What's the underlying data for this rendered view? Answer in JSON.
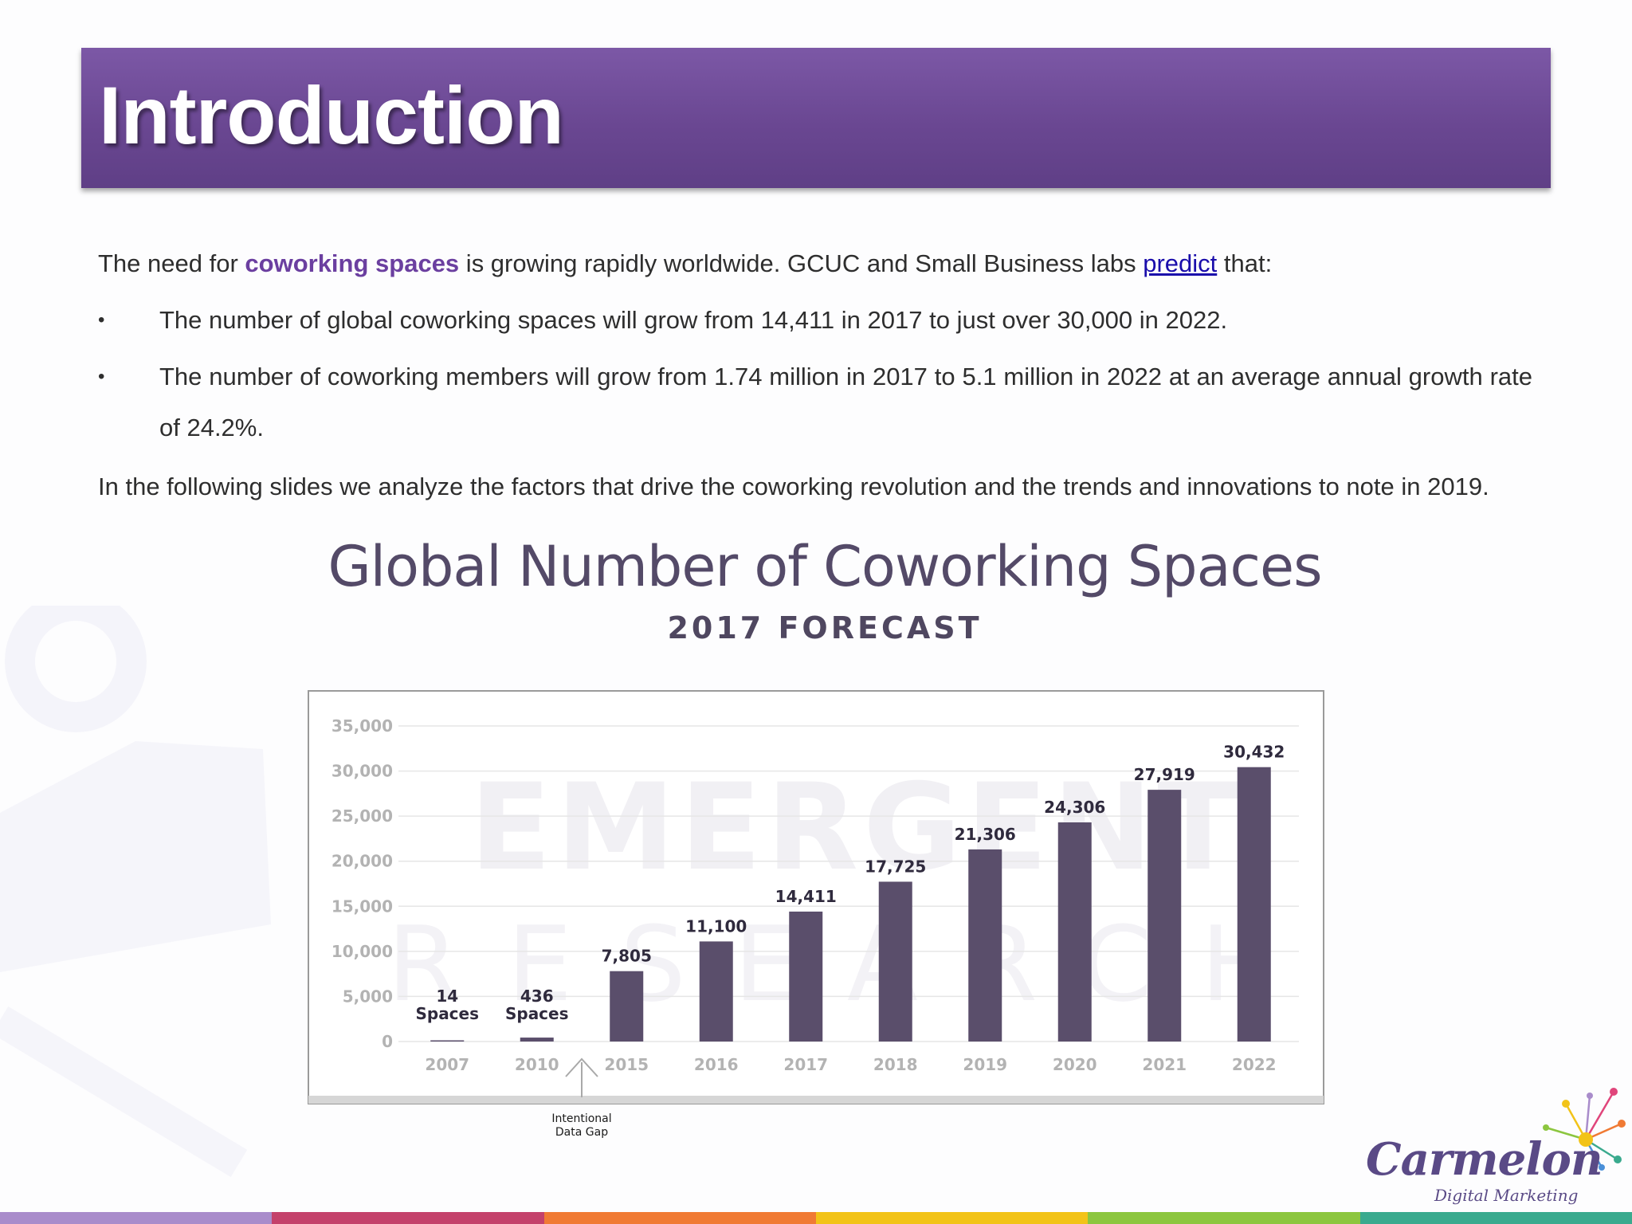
{
  "slide": {
    "title": "Introduction",
    "intro": {
      "before": "The need for ",
      "highlight": "coworking spaces",
      "middle": " is growing rapidly worldwide. GCUC and Small Business labs ",
      "link": "predict",
      "after": " that:"
    },
    "bullets": [
      "The number of global coworking spaces will grow from 14,411 in 2017 to just over 30,000 in 2022.",
      "The number of coworking members will grow from 1.74 million in 2017 to 5.1 million in 2022 at an average annual growth rate of 24.2%."
    ],
    "bullet_symbol": "•",
    "closing": "In the following slides we analyze the factors that drive the coworking revolution and the trends and innovations to note in 2019."
  },
  "chart_data": {
    "type": "bar",
    "title": "Global Number of Coworking Spaces",
    "subtitle": "2017 FORECAST",
    "categories": [
      "2007",
      "2010",
      "2015",
      "2016",
      "2017",
      "2018",
      "2019",
      "2020",
      "2021",
      "2022"
    ],
    "values": [
      14,
      436,
      7805,
      11100,
      14411,
      17725,
      21306,
      24306,
      27919,
      30432
    ],
    "data_labels": [
      [
        "14",
        "Spaces"
      ],
      [
        "436",
        "Spaces"
      ],
      [
        "7,805"
      ],
      [
        "11,100"
      ],
      [
        "14,411"
      ],
      [
        "17,725"
      ],
      [
        "21,306"
      ],
      [
        "24,306"
      ],
      [
        "27,919"
      ],
      [
        "30,432"
      ]
    ],
    "y_ticks": [
      "0",
      "5,000",
      "10,000",
      "15,000",
      "20,000",
      "25,000",
      "30,000",
      "35,000"
    ],
    "ylim": [
      0,
      35000
    ],
    "y_step": 5000,
    "grid": true,
    "annotation": [
      "Intentional",
      "Data Gap"
    ],
    "watermark": [
      "EMERGENT",
      "RESEARCH"
    ],
    "bar_color": "#5a4e6b"
  },
  "logo": {
    "name": "Carmelon",
    "tagline": "Digital Marketing"
  },
  "colors": {
    "title_bar": "#6a4792",
    "highlight": "#6b3fa0",
    "link": "#1a0dab",
    "stripe": [
      "#a98ccb",
      "#c4416b",
      "#f07a34",
      "#f2c318",
      "#8cc63f",
      "#3aaa8e"
    ]
  }
}
